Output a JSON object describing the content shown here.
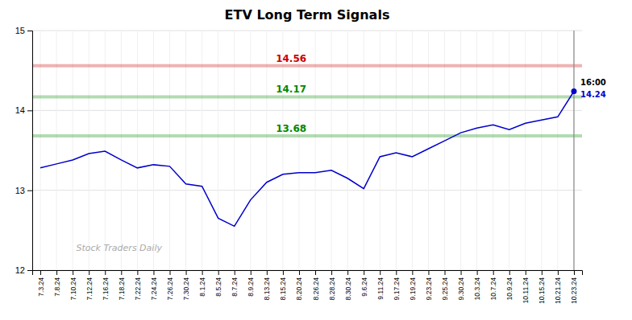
{
  "chart_data": {
    "type": "line",
    "title": "ETV Long Term Signals",
    "categories": [
      "7.3.24",
      "7.8.24",
      "7.10.24",
      "7.12.24",
      "7.16.24",
      "7.18.24",
      "7.22.24",
      "7.24.24",
      "7.26.24",
      "7.30.24",
      "8.1.24",
      "8.5.24",
      "8.7.24",
      "8.9.24",
      "8.13.24",
      "8.15.24",
      "8.20.24",
      "8.26.24",
      "8.28.24",
      "8.30.24",
      "9.6.24",
      "9.11.24",
      "9.17.24",
      "9.19.24",
      "9.23.24",
      "9.25.24",
      "9.30.24",
      "10.3.24",
      "10.7.24",
      "10.9.24",
      "10.11.24",
      "10.15.24",
      "10.21.24",
      "10.23.24"
    ],
    "values": [
      13.28,
      13.33,
      13.38,
      13.46,
      13.49,
      13.38,
      13.28,
      13.32,
      13.3,
      13.08,
      13.05,
      12.65,
      12.55,
      12.88,
      13.1,
      13.2,
      13.22,
      13.22,
      13.25,
      13.15,
      13.02,
      13.42,
      13.47,
      13.42,
      13.52,
      13.62,
      13.72,
      13.78,
      13.82,
      13.76,
      13.84,
      13.88,
      13.92,
      14.24
    ],
    "color": "#0000cc",
    "ylim": [
      12,
      15
    ],
    "yticks": [
      12,
      13,
      14,
      15
    ],
    "grid": true,
    "hlines": [
      {
        "value": 14.56,
        "color": "#cc0000"
      },
      {
        "value": 14.17,
        "color": "#008800"
      },
      {
        "value": 13.68,
        "color": "#008800"
      }
    ],
    "annotations": [
      "16:00",
      "Stock Traders Daily"
    ]
  }
}
